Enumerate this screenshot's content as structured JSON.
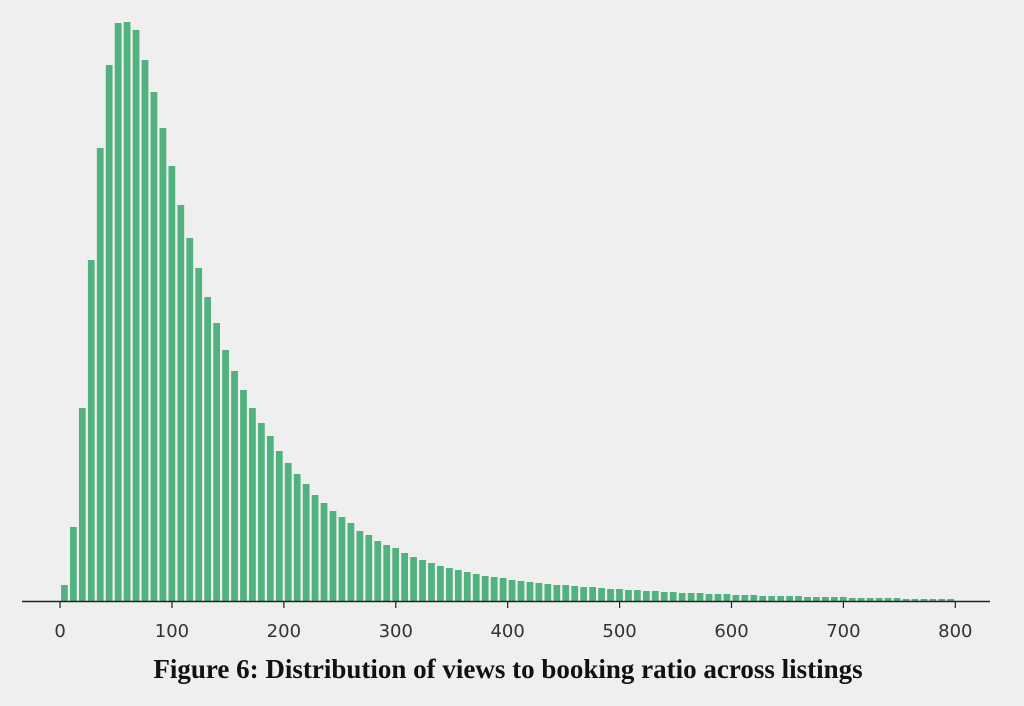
{
  "chart_data": {
    "type": "histogram",
    "caption": "Figure 6: Distribution of views to booking ratio across listings",
    "bins": [
      0,
      8,
      16,
      24,
      32,
      40,
      48,
      56,
      64,
      72,
      80,
      88,
      96,
      104,
      112,
      120,
      128,
      136,
      144,
      152,
      160,
      168,
      176,
      184,
      192,
      200,
      208,
      216,
      224,
      232,
      240,
      248,
      256,
      264,
      272,
      280,
      288,
      296,
      304,
      312,
      320,
      328,
      336,
      344,
      352,
      360,
      368,
      376,
      384,
      392,
      400,
      408,
      416,
      424,
      432,
      440,
      448,
      456,
      464,
      472,
      480,
      488,
      496,
      504,
      512,
      520,
      528,
      536,
      544,
      552,
      560,
      568,
      576,
      584,
      592,
      600,
      608,
      616,
      624,
      632,
      640,
      648,
      656,
      664,
      672,
      680,
      688,
      696,
      704,
      712,
      720,
      728,
      736,
      744,
      752,
      760,
      768,
      776,
      784,
      792,
      800
    ],
    "values": [
      16,
      74,
      193,
      341,
      453,
      536,
      578,
      579,
      571,
      541,
      509,
      473,
      435,
      396,
      363,
      333,
      304,
      278,
      251,
      230,
      211,
      193,
      178,
      165,
      150,
      138,
      127,
      117,
      106,
      98,
      90,
      84,
      78,
      70,
      66,
      60,
      56,
      53,
      48,
      44,
      41,
      38,
      35,
      33,
      31,
      29,
      27,
      25,
      24,
      23,
      21,
      20,
      19,
      18,
      17,
      16,
      16,
      15,
      14,
      14,
      13,
      12,
      12,
      11,
      11,
      10,
      10,
      9,
      9,
      8,
      8,
      8,
      7,
      7,
      7,
      6,
      6,
      6,
      5,
      5,
      5,
      5,
      5,
      4,
      4,
      4,
      4,
      4,
      3,
      3,
      3,
      3,
      3,
      3,
      2,
      2,
      2,
      2,
      2,
      2
    ],
    "color": "#52b27f",
    "xlim": [
      -34,
      831
    ],
    "xticks": [
      0,
      100,
      200,
      300,
      400,
      500,
      600,
      700,
      800
    ]
  }
}
